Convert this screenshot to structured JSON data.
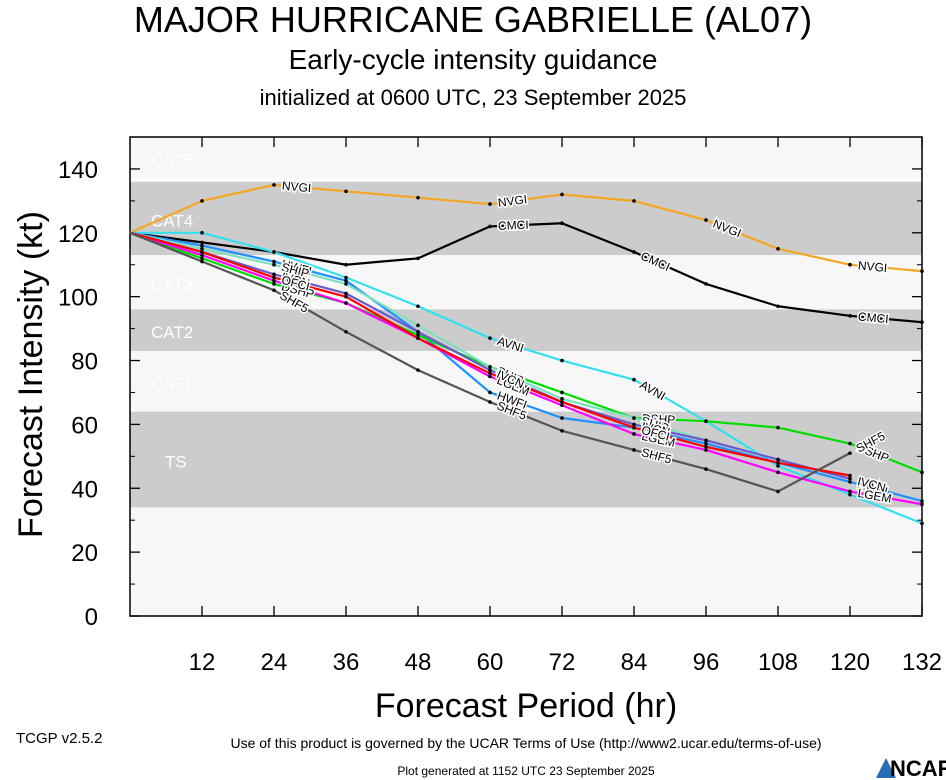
{
  "titles": {
    "main": "MAJOR HURRICANE GABRIELLE (AL07)",
    "sub": "Early-cycle intensity guidance",
    "init": "initialized at 0600 UTC, 23 September 2025"
  },
  "footer": {
    "version": "TCGP v2.5.2",
    "terms": "Use of this product is governed by the UCAR Terms of Use (http://www2.ucar.edu/terms-of-use)",
    "generated": "Plot generated at 1152 UTC   23 September 2025",
    "logo_text": "NCAR"
  },
  "chart_data": {
    "type": "line",
    "xlabel": "Forecast Period (hr)",
    "ylabel": "Forecast Intensity (kt)",
    "xlim": [
      0,
      132
    ],
    "ylim": [
      0,
      150
    ],
    "xticks": [
      12,
      24,
      36,
      48,
      60,
      72,
      84,
      96,
      108,
      120,
      132
    ],
    "yticks": [
      0,
      20,
      40,
      60,
      80,
      100,
      120,
      140
    ],
    "bands": [
      {
        "label": "CAT5",
        "lo": 137,
        "hi": 150,
        "color": "#f7f7f7"
      },
      {
        "label": "CAT4",
        "lo": 113,
        "hi": 136,
        "color": "#cccccc"
      },
      {
        "label": "CAT3",
        "lo": 96,
        "hi": 113,
        "color": "#f7f7f7"
      },
      {
        "label": "CAT2",
        "lo": 83,
        "hi": 96,
        "color": "#cccccc"
      },
      {
        "label": "CAT1",
        "lo": 64,
        "hi": 83,
        "color": "#f7f7f7"
      },
      {
        "label": "TS",
        "lo": 34,
        "hi": 64,
        "color": "#cccccc"
      },
      {
        "label": "",
        "lo": 0,
        "hi": 34,
        "color": "#f7f7f7"
      }
    ],
    "series": [
      {
        "name": "NVGI",
        "color": "#f5a623",
        "x": [
          0,
          12,
          24,
          36,
          48,
          60,
          72,
          84,
          96,
          108,
          120,
          132
        ],
        "y": [
          120,
          130,
          135,
          133,
          131,
          129,
          132,
          130,
          124,
          115,
          110,
          108
        ],
        "label_at": [
          24,
          60,
          96,
          120
        ]
      },
      {
        "name": "CMCI",
        "color": "#000000",
        "x": [
          0,
          12,
          24,
          36,
          48,
          60,
          72,
          84,
          96,
          108,
          120,
          132
        ],
        "y": [
          120,
          117,
          114,
          110,
          112,
          122,
          123,
          114,
          104,
          97,
          94,
          92
        ],
        "label_at": [
          60,
          84,
          120
        ]
      },
      {
        "name": "AVNI",
        "color": "#33e0f0",
        "x": [
          0,
          12,
          24,
          36,
          48,
          60,
          72,
          84,
          96,
          108,
          120,
          132
        ],
        "y": [
          120,
          120,
          114,
          106,
          97,
          87,
          80,
          74,
          61,
          47,
          38,
          29
        ],
        "label_at": [
          60,
          84
        ]
      },
      {
        "name": "HWFI",
        "color": "#1e90ff",
        "x": [
          0,
          12,
          24,
          36,
          48,
          60,
          72,
          84,
          96,
          108,
          120,
          132
        ],
        "y": [
          120,
          116,
          111,
          105,
          89,
          70,
          62,
          59,
          54,
          48,
          42,
          36
        ],
        "label_at": [
          24,
          60,
          120
        ]
      },
      {
        "name": "DSHP",
        "color": "#00dd00",
        "x": [
          0,
          12,
          24,
          36,
          48,
          60,
          72,
          84,
          96,
          108,
          120,
          132
        ],
        "y": [
          120,
          112,
          104,
          98,
          88,
          78,
          70,
          62,
          61,
          59,
          54,
          45
        ],
        "label_at": [
          24,
          84,
          120
        ]
      },
      {
        "name": "LGEM",
        "color": "#ff00ff",
        "x": [
          0,
          12,
          24,
          36,
          48,
          60,
          72,
          84,
          96,
          108,
          120,
          132
        ],
        "y": [
          120,
          113,
          105,
          98,
          87,
          75,
          66,
          57,
          52,
          45,
          39,
          35
        ],
        "label_at": [
          60,
          84,
          120
        ]
      },
      {
        "name": "SHIP",
        "color": "#7fe0c0",
        "x": [
          0,
          12,
          24,
          36,
          48,
          60,
          72,
          84,
          96,
          108
        ],
        "y": [
          120,
          115,
          110,
          104,
          91,
          78,
          68,
          62,
          55,
          49
        ],
        "label_at": [
          24,
          60,
          84
        ]
      },
      {
        "name": "IVCN",
        "color": "#6a5acd",
        "x": [
          0,
          12,
          24,
          36,
          48,
          60,
          72,
          84,
          96,
          108,
          120
        ],
        "y": [
          120,
          114,
          107,
          101,
          89,
          77,
          67,
          60,
          55,
          49,
          43
        ],
        "label_at": [
          24,
          60,
          84,
          120
        ]
      },
      {
        "name": "OFCI",
        "color": "#ff0000",
        "x": [
          0,
          12,
          24,
          36,
          48,
          60,
          72,
          84,
          96,
          108,
          120
        ],
        "y": [
          120,
          114,
          106,
          100,
          87,
          76,
          67,
          59,
          53,
          48,
          44
        ],
        "label_at": [
          24,
          84
        ]
      },
      {
        "name": "SHF5",
        "color": "#555555",
        "x": [
          0,
          12,
          24,
          36,
          48,
          60,
          72,
          84,
          96,
          108,
          120
        ],
        "y": [
          120,
          111,
          102,
          89,
          77,
          67,
          58,
          52,
          46,
          39,
          51
        ],
        "label_at": [
          24,
          60,
          84,
          120
        ]
      }
    ]
  }
}
